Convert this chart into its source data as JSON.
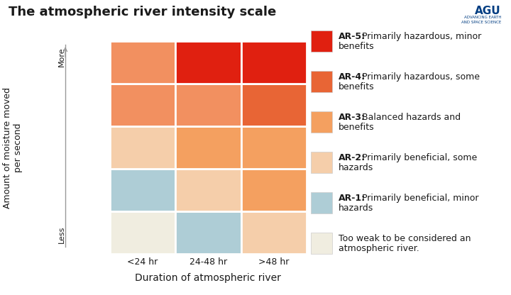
{
  "title": "The atmospheric river intensity scale",
  "xlabel": "Duration of atmospheric river",
  "ylabel_line1": "Amount of moisture moved",
  "ylabel_line2": "per second",
  "x_labels": [
    "<24 hr",
    "24-48 hr",
    ">48 hr"
  ],
  "grid_colors_top_to_bottom": [
    [
      "#f29060",
      "#e02010",
      "#e02010"
    ],
    [
      "#f29060",
      "#f29060",
      "#e86535"
    ],
    [
      "#f5ceaa",
      "#f4a060",
      "#f4a060"
    ],
    [
      "#aecdd6",
      "#f5ceaa",
      "#f4a060"
    ],
    [
      "#f0ede0",
      "#aecdd6",
      "#f5ceaa"
    ]
  ],
  "legend_items": [
    {
      "color": "#e02010",
      "bold": "AR-5:",
      "rest": " Primarily hazardous, minor\nbenefits"
    },
    {
      "color": "#e86535",
      "bold": "AR-4:",
      "rest": " Primarily hazardous, some\nbenefits"
    },
    {
      "color": "#f4a060",
      "bold": "AR-3:",
      "rest": " Balanced hazards and\nbenefits"
    },
    {
      "color": "#f5ceaa",
      "bold": "AR-2:",
      "rest": " Primarily beneficial, some\nhazards"
    },
    {
      "color": "#aecdd6",
      "bold": "AR-1:",
      "rest": " Primarily beneficial, minor\nhazards"
    },
    {
      "color": "#f0ede0",
      "bold": "",
      "rest": "Too weak to be considered an\natmospheric river."
    }
  ],
  "bg": "#ffffff",
  "fg": "#1a1a1a",
  "arrow_color": "#999999",
  "grid_line_color": "#ffffff",
  "agu_blue": "#003d82"
}
